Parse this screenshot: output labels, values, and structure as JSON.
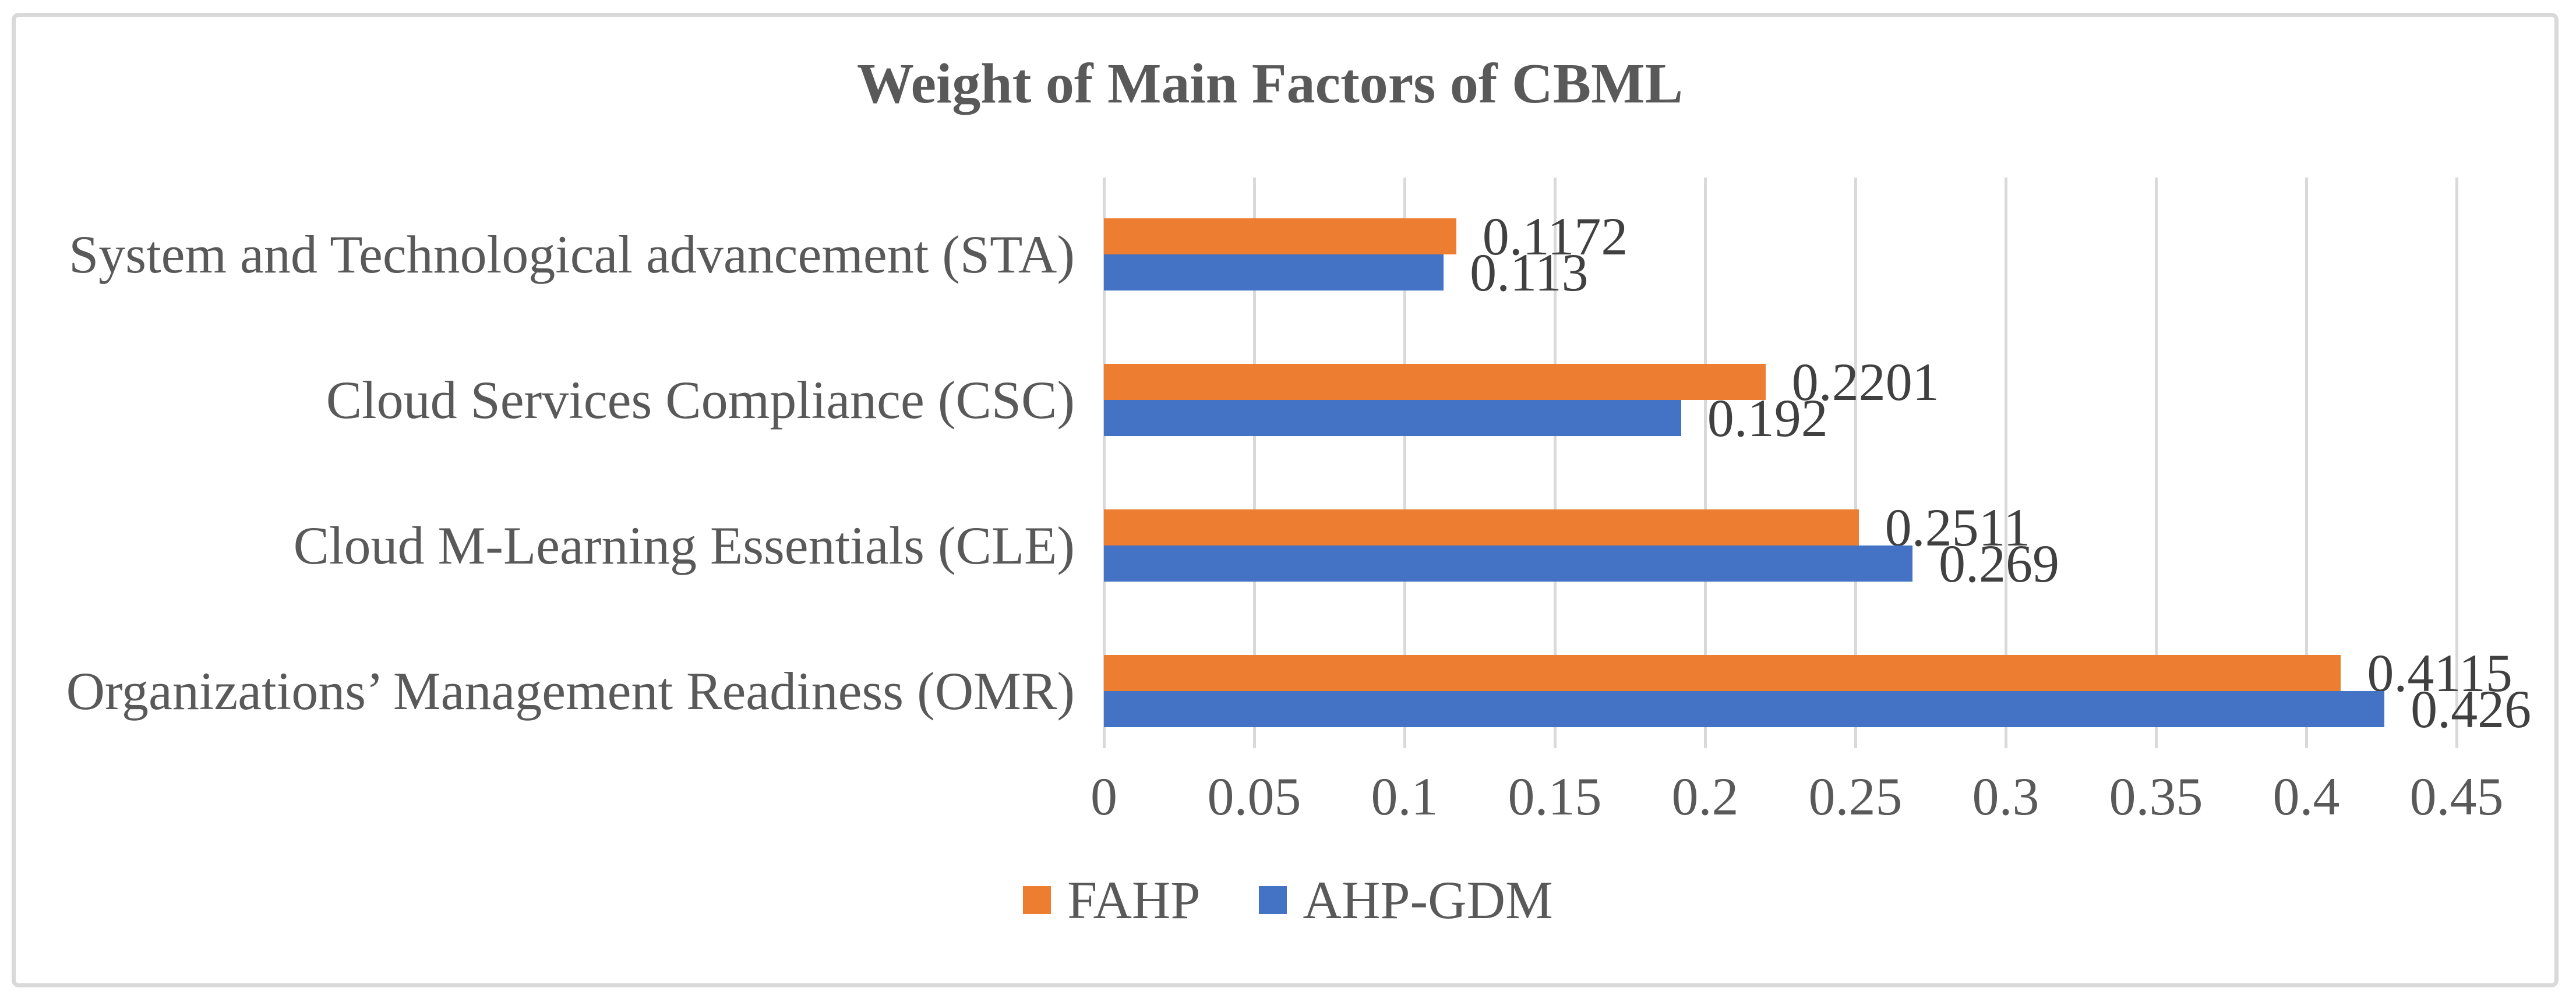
{
  "title": "Weight of Main Factors of CBML",
  "chart_data": {
    "type": "bar",
    "orientation": "horizontal",
    "title": "Weight of Main Factors of CBML",
    "categories": [
      "System and Technological advancement (STA)",
      "Cloud Services Compliance (CSC)",
      "Cloud M-Learning Essentials (CLE)",
      "Organizations’ Management Readiness (OMR)"
    ],
    "series": [
      {
        "name": "FAHP",
        "color": "#ED7D31",
        "values": [
          0.1172,
          0.2201,
          0.2511,
          0.4115
        ],
        "labels": [
          "0.1172",
          "0.2201",
          "0.2511",
          "0.4115"
        ]
      },
      {
        "name": "AHP-GDM",
        "color": "#4472C4",
        "values": [
          0.113,
          0.192,
          0.269,
          0.426
        ],
        "labels": [
          "0.113",
          "0.192",
          "0.269",
          "0.426"
        ]
      }
    ],
    "x_axis": {
      "min": 0,
      "max": 0.45,
      "tick_step": 0.05,
      "tick_labels": [
        "0",
        "0.05",
        "0.1",
        "0.15",
        "0.2",
        "0.25",
        "0.3",
        "0.35",
        "0.4",
        "0.45"
      ]
    },
    "grid": true,
    "data_labels": true,
    "legend_position": "bottom"
  },
  "colors": {
    "fahp_bar": "#ED7D31",
    "ahp_gdm_bar": "#4472C4",
    "gridline": "#D9D9D9",
    "frame_border": "#D9D9D9",
    "title_text": "#595959",
    "axis_text": "#595959",
    "data_label_text": "#404040",
    "background": "#FFFFFF"
  }
}
